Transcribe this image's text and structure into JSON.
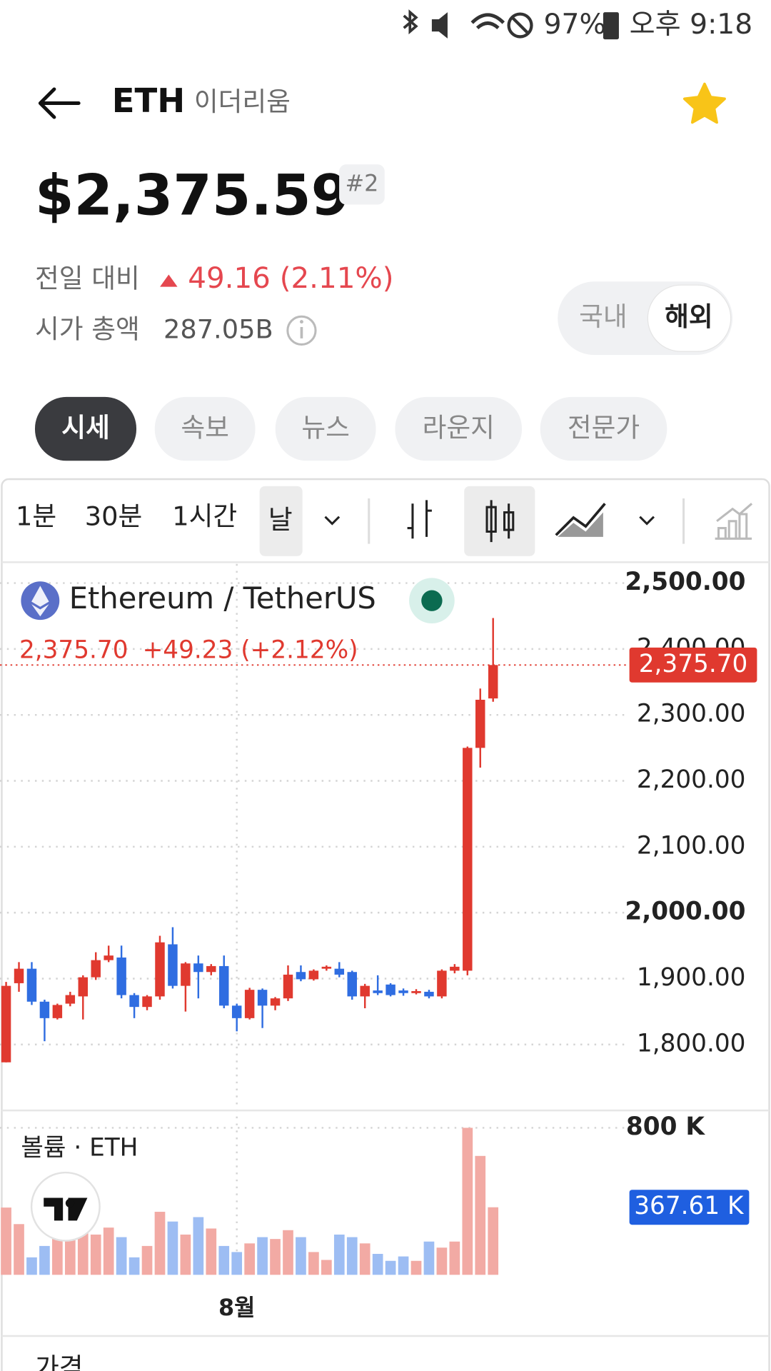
{
  "status_bar": {
    "battery": "97%",
    "time": "오후 9:18"
  },
  "header": {
    "symbol": "ETH",
    "name": "이더리움"
  },
  "price": {
    "value": "$2,375.59",
    "rank": "#2",
    "change_label": "전일 대비",
    "change": "49.16 (2.11%)",
    "market_cap_label": "시가 총액",
    "market_cap": "287.05B"
  },
  "market_toggle": [
    "국내",
    "해외"
  ],
  "tabs": [
    "시세",
    "속보",
    "뉴스",
    "라운지",
    "전문가"
  ],
  "intervals": [
    "1분",
    "30분",
    "1시간",
    "날"
  ],
  "chart_data": {
    "type": "candlestick",
    "title": "Ethereum / TetherUS",
    "last_label": "2,375.70",
    "change_label": "+49.23 (+2.12%)",
    "categories": [
      null,
      null,
      null,
      null,
      null,
      null,
      null,
      null,
      null,
      null,
      null,
      null,
      null,
      null,
      null,
      null,
      null,
      null,
      "8월",
      null,
      null,
      null,
      null,
      null,
      null,
      null,
      null,
      null,
      null,
      null,
      null,
      null,
      null,
      null,
      null,
      null,
      null,
      null,
      null
    ],
    "open": [
      1773,
      1893,
      1915,
      1865,
      1840,
      1862,
      1873,
      1902,
      1928,
      1932,
      1875,
      1857,
      1873,
      1952,
      1889,
      1923,
      1910,
      1919,
      1859,
      1840,
      1883,
      1859,
      1870,
      1910,
      1899,
      1915,
      1915,
      1910,
      1873,
      1882,
      1891,
      1882,
      1878,
      1880,
      1873,
      1912,
      1912,
      2250,
      2325
    ],
    "high": [
      1895,
      1925,
      1925,
      1868,
      1862,
      1880,
      1905,
      1940,
      1950,
      1950,
      1878,
      1875,
      1965,
      1978,
      1925,
      1935,
      1922,
      1935,
      1862,
      1886,
      1885,
      1872,
      1920,
      1920,
      1914,
      1920,
      1925,
      1912,
      1892,
      1905,
      1893,
      1885,
      1884,
      1883,
      1914,
      1922,
      2252,
      2340,
      2447
    ],
    "low": [
      1773,
      1880,
      1860,
      1805,
      1838,
      1858,
      1838,
      1898,
      1925,
      1870,
      1840,
      1852,
      1868,
      1885,
      1850,
      1870,
      1905,
      1855,
      1820,
      1838,
      1825,
      1852,
      1866,
      1896,
      1897,
      1912,
      1902,
      1868,
      1855,
      1875,
      1873,
      1874,
      1876,
      1870,
      1870,
      1908,
      1905,
      2220,
      2320
    ],
    "close": [
      1889,
      1915,
      1865,
      1840,
      1860,
      1875,
      1902,
      1928,
      1935,
      1875,
      1857,
      1873,
      1955,
      1889,
      1923,
      1910,
      1919,
      1859,
      1840,
      1883,
      1859,
      1870,
      1906,
      1899,
      1912,
      1918,
      1906,
      1873,
      1889,
      1878,
      1875,
      1878,
      1881,
      1873,
      1912,
      1918,
      2250,
      2323,
      2375.7
    ],
    "up_color": "#e0392f",
    "down_color": "#2f6de1",
    "ylim": [
      1700,
      2529
    ],
    "yticks": [
      {
        "value": 2500,
        "label": "2,500.00"
      },
      {
        "value": 2400,
        "label": "2,400.00"
      },
      {
        "value": 2300,
        "label": "2,300.00"
      },
      {
        "value": 2200,
        "label": "2,200.00"
      },
      {
        "value": 2100,
        "label": "2,100.00"
      },
      {
        "value": 2000,
        "label": "2,000.00"
      },
      {
        "value": 1900,
        "label": "1,900.00"
      },
      {
        "value": 1800,
        "label": "1,800.00"
      }
    ],
    "last_price": {
      "value": 2375.7,
      "label": "2,375.70"
    },
    "grid": true,
    "volume": {
      "title": "볼륨 · ETH",
      "values": [
        366,
        276,
        95,
        157,
        219,
        290,
        252,
        219,
        257,
        205,
        95,
        157,
        343,
        290,
        219,
        314,
        252,
        157,
        124,
        171,
        205,
        195,
        243,
        205,
        124,
        81,
        219,
        205,
        171,
        114,
        76,
        100,
        76,
        181,
        148,
        181,
        800,
        647,
        367.61
      ],
      "up_color": "#f2aaa4",
      "down_color": "#9dbdf3",
      "ylim": [
        0,
        885
      ],
      "yticks": [
        {
          "value": 800,
          "label": "800 K"
        }
      ],
      "last": {
        "value": 367.61,
        "label": "367.61 K"
      },
      "last_color": "#1f5fe0"
    }
  },
  "footer": {
    "label": "가격"
  }
}
